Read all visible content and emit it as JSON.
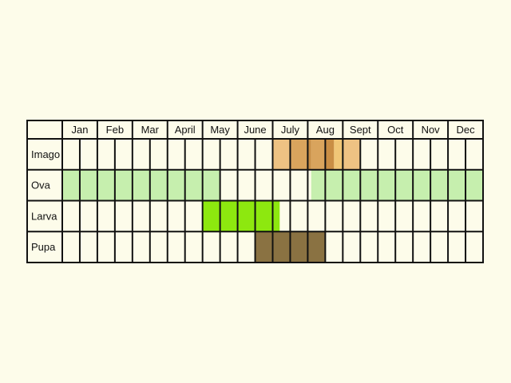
{
  "chart_data": {
    "type": "table",
    "months": [
      "Jan",
      "Feb",
      "Mar",
      "April",
      "May",
      "June",
      "July",
      "Aug",
      "Sept",
      "Oct",
      "Nov",
      "Dec"
    ],
    "stages": [
      {
        "name": "Imago",
        "periods": [
          {
            "start": 6.0,
            "end": 6.5,
            "color": "#eec283"
          },
          {
            "start": 6.5,
            "end": 7.0,
            "color": "#d9a45d"
          },
          {
            "start": 7.0,
            "end": 7.1,
            "color": "#c98e45"
          },
          {
            "start": 7.1,
            "end": 7.5,
            "color": "#d9a45d"
          },
          {
            "start": 7.5,
            "end": 7.75,
            "color": "#c98e45"
          },
          {
            "start": 7.75,
            "end": 8.0,
            "color": "#f0c677"
          },
          {
            "start": 8.0,
            "end": 8.5,
            "color": "#eec283"
          }
        ]
      },
      {
        "name": "Ova",
        "periods": [
          {
            "start": 0.0,
            "end": 4.5,
            "color": "#c6efae"
          },
          {
            "start": 7.1,
            "end": 12.0,
            "color": "#c6efae"
          }
        ]
      },
      {
        "name": "Larva",
        "periods": [
          {
            "start": 4.0,
            "end": 6.2,
            "color": "#8de80f"
          }
        ]
      },
      {
        "name": "Pupa",
        "periods": [
          {
            "start": 5.5,
            "end": 7.5,
            "color": "#8a7242"
          }
        ]
      }
    ]
  }
}
